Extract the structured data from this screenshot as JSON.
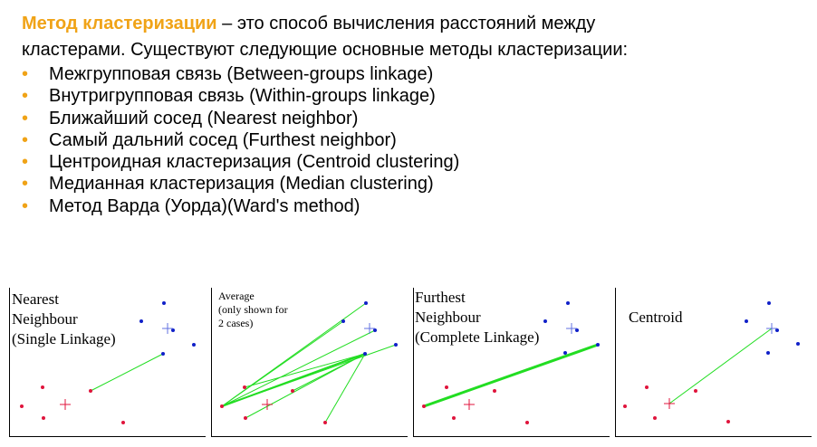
{
  "intro": {
    "term": "Метод кластеризации",
    "rest_line1": " – это способ вычисления расстояний между",
    "line2": "кластерами. Существуют следующие основные методы кластеризации:"
  },
  "bullet_glyph": "•",
  "methods": [
    "Межгрупповая связь (Between-groups linkage)",
    "Внутригрупповая связь (Within-groups linkage)",
    "Ближайший сосед (Nearest neighbor)",
    "Самый дальний сосед (Furthest neighbor)",
    "Центроидная кластеризация (Centroid clustering)",
    "Медианная кластеризация (Median clustering)",
    "Метод Варда (Уорда)(Ward's method)"
  ],
  "panels": [
    {
      "label": "Nearest\nNeighbour\n(Single Linkage)"
    },
    {
      "label": "Average\n(only shown for\n 2 cases)"
    },
    {
      "label": "Furthest\nNeighbour\n(Complete Linkage)"
    },
    {
      "label": "Centroid"
    }
  ],
  "colors": {
    "accent": "#f0a317",
    "red_points": "#e0143c",
    "blue_points": "#1020c8",
    "link_line": "#22dd22"
  }
}
